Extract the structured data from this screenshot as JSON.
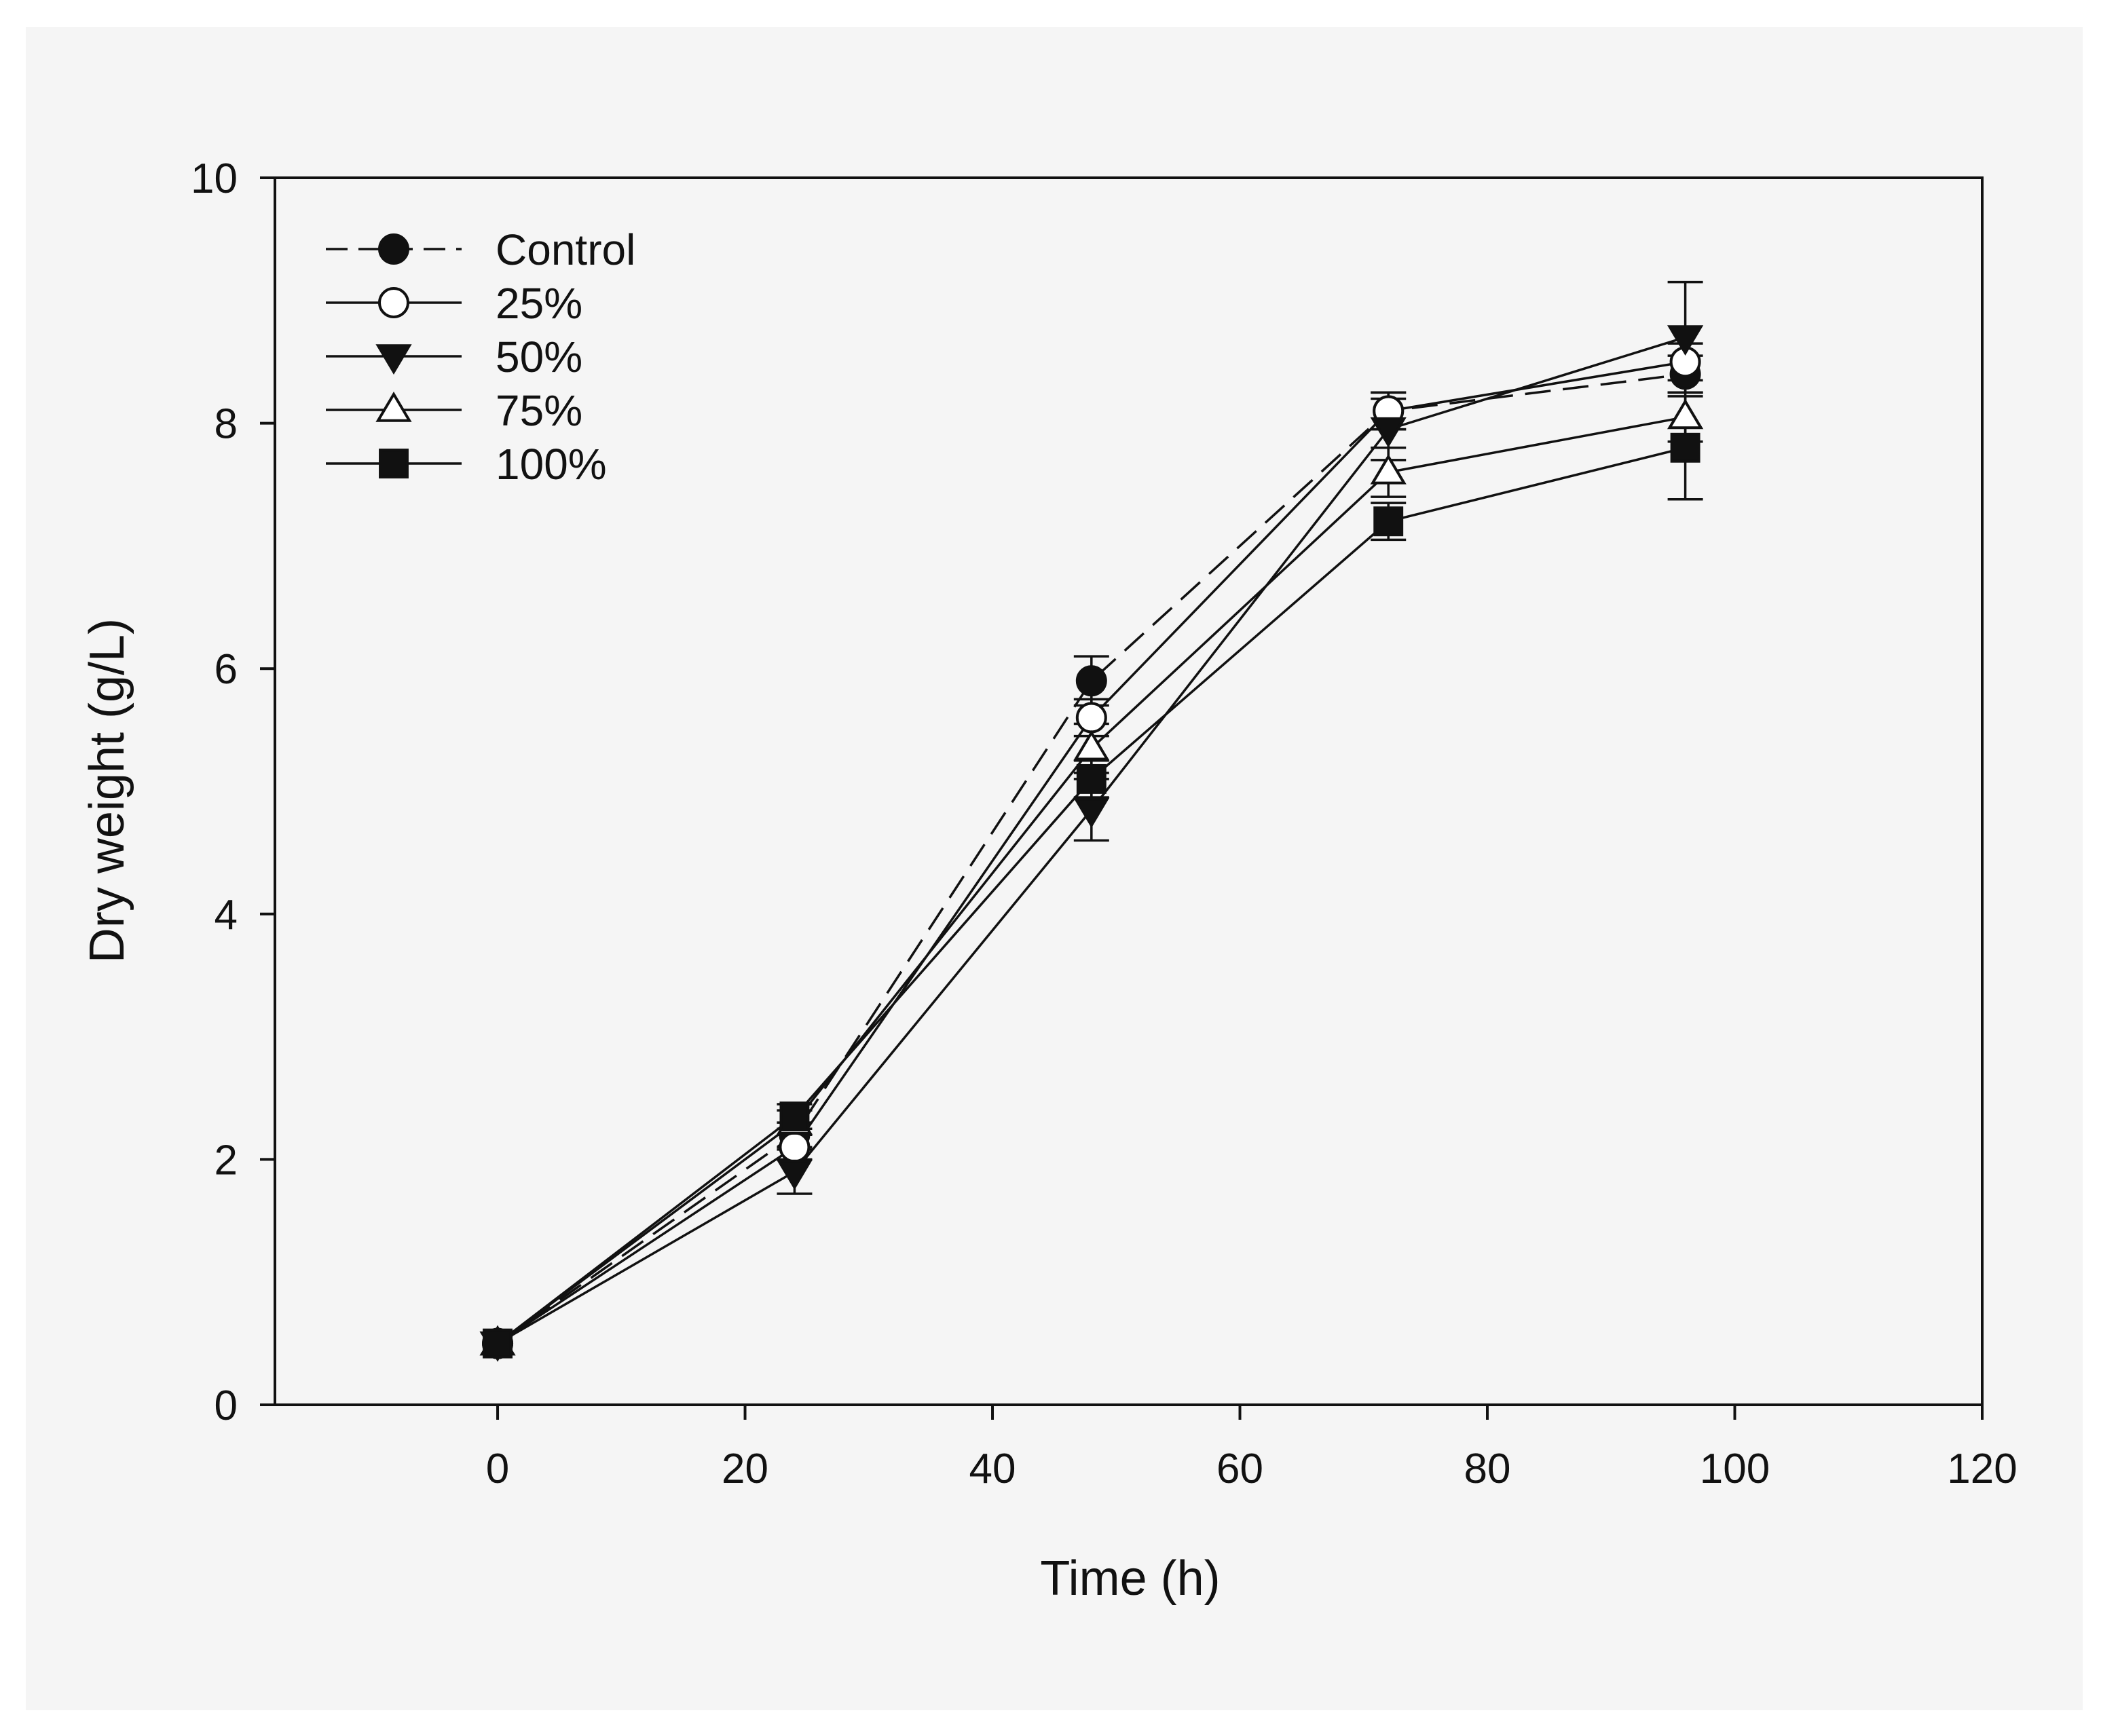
{
  "chart_data": {
    "type": "line",
    "title": "",
    "xlabel": "Time (h)",
    "ylabel": "Dry weight (g/L)",
    "xlim": [
      -18,
      120
    ],
    "ylim": [
      0,
      10
    ],
    "xticks": [
      0,
      20,
      40,
      60,
      80,
      100,
      120
    ],
    "yticks": [
      0,
      2,
      4,
      6,
      8,
      10
    ],
    "x": [
      0,
      24,
      48,
      72,
      96
    ],
    "legend_position": "top-left",
    "grid": false,
    "series": [
      {
        "name": "Control",
        "marker": "circle-filled",
        "line": "dashed",
        "values": [
          0.5,
          2.2,
          5.9,
          8.1,
          8.4
        ],
        "errors": [
          0.02,
          0.1,
          0.2,
          0.15,
          0.15
        ]
      },
      {
        "name": "25%",
        "marker": "circle-open",
        "line": "solid",
        "values": [
          0.5,
          2.1,
          5.6,
          8.1,
          8.5
        ],
        "errors": [
          0.02,
          0.1,
          0.15,
          0.15,
          0.15
        ]
      },
      {
        "name": "50%",
        "marker": "triangle-down-filled",
        "line": "solid",
        "values": [
          0.5,
          1.9,
          4.85,
          7.95,
          8.7
        ],
        "errors": [
          0.02,
          0.18,
          0.25,
          0.25,
          0.45
        ]
      },
      {
        "name": "75%",
        "marker": "triangle-up-open",
        "line": "solid",
        "values": [
          0.5,
          2.3,
          5.35,
          7.6,
          8.05
        ],
        "errors": [
          0.02,
          0.1,
          0.2,
          0.2,
          0.2
        ]
      },
      {
        "name": "100%",
        "marker": "square-filled",
        "line": "solid",
        "values": [
          0.5,
          2.35,
          5.1,
          7.2,
          7.8
        ],
        "errors": [
          0.02,
          0.1,
          0.15,
          0.15,
          0.42
        ]
      }
    ]
  }
}
